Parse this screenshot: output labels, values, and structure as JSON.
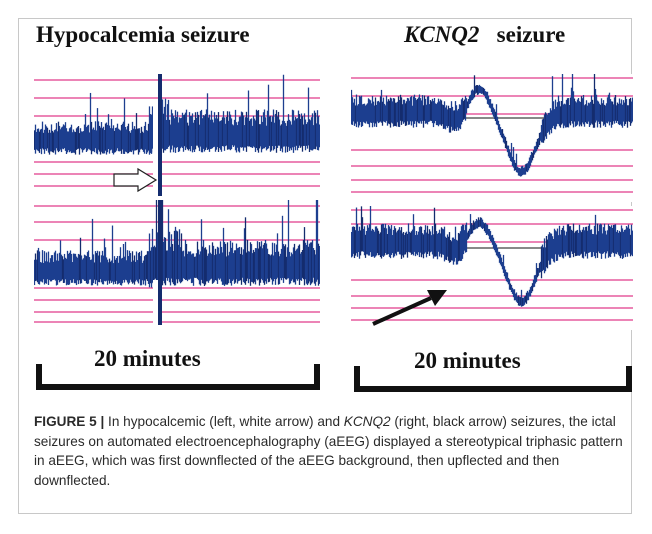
{
  "figure": {
    "left_title": "Hypocalcemia seizure",
    "right_title_gene": "KCNQ2",
    "right_title_rest": "seizure",
    "scale_label_left": "20 minutes",
    "scale_label_right": "20 minutes"
  },
  "caption": {
    "label": "FIGURE 5 |",
    "text_before": " In hypocalcemic (left, white arrow) and ",
    "gene": "KCNQ2",
    "text_after": " (right, black arrow) seizures, the ictal seizures on automated electroencephalography (aEEG) displayed a stereotypical triphasic pattern in aEEG, which was first downflected of the aEEG background, then upflected and then downflected."
  },
  "colors": {
    "trace": "#1d3f8f",
    "trace_dark": "#142c6e",
    "gridline": "#e03a8a",
    "baseline": "#111111",
    "text": "#111111"
  }
}
